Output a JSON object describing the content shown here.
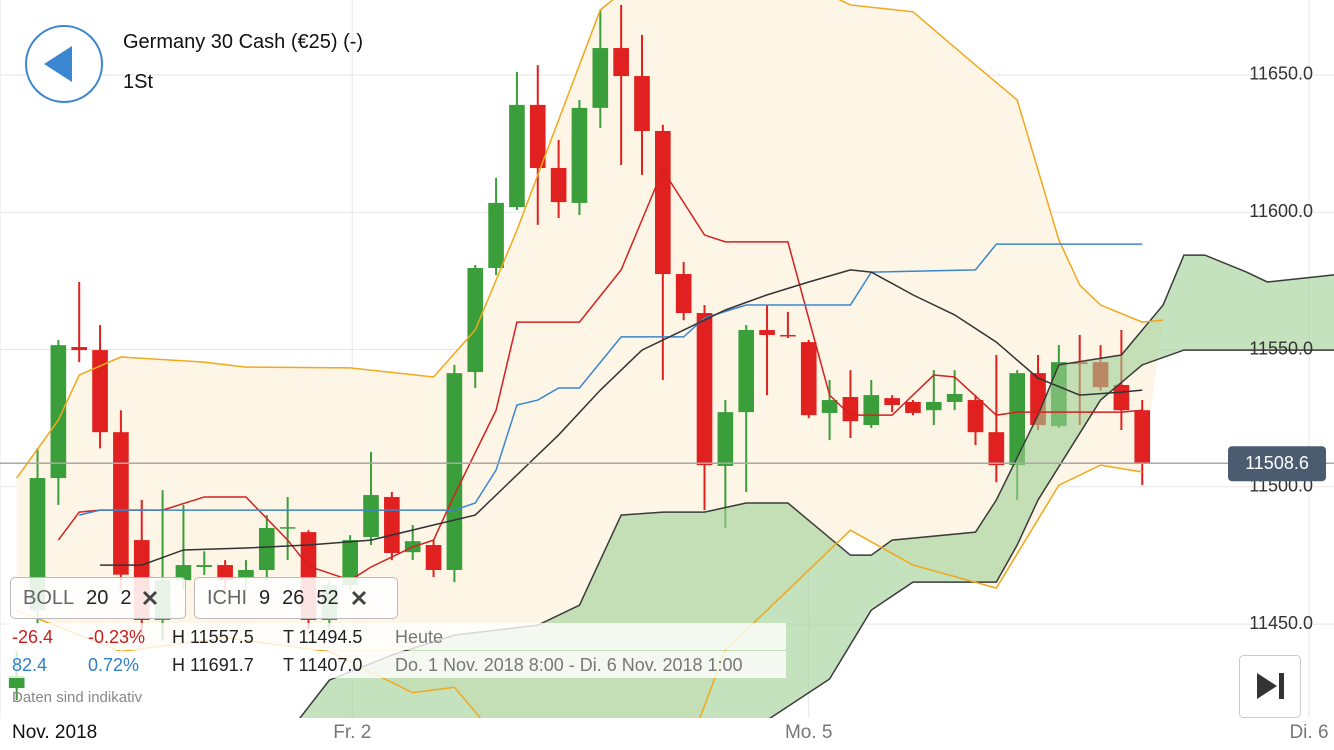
{
  "header": {
    "title": "Germany 30 Cash (€25) (-)",
    "subtitle": "1St"
  },
  "chart_data": {
    "type": "candlestick",
    "up_color": "#3a9e3a",
    "down_color": "#e0211f",
    "xlim": [
      -0.8,
      63.2
    ],
    "xticks": [
      {
        "value": -0.8,
        "label": "Nov. 2018"
      },
      {
        "value": 16.1,
        "label": "Fr. 2"
      },
      {
        "value": 38,
        "label": "Mo. 5"
      },
      {
        "value": 62,
        "label": "Di. 6"
      }
    ],
    "ylim": [
      11415.8,
      11677.3
    ],
    "yticks": [
      {
        "value": 11450,
        "label": "11450.0"
      },
      {
        "value": 11500,
        "label": "11500.0"
      },
      {
        "value": 11550,
        "label": "11550.0"
      },
      {
        "value": 11600,
        "label": "11600.0"
      },
      {
        "value": 11650,
        "label": "11650.0"
      }
    ],
    "grid": true,
    "last_value": 11508.6,
    "open": [
      11426.7,
      11455,
      11503.2,
      11550.9,
      11549.8,
      11519.9,
      11480.6,
      11451.5,
      11466.0,
      11470.8,
      11471.5,
      11466.8,
      11469.7,
      11485.0,
      11483.5,
      11451.5,
      11464.2,
      11481.7,
      11496.3,
      11476.2,
      11478.8,
      11469.7,
      11541.8,
      11579.7,
      11601.9,
      11639.1,
      11616.1,
      11603.4,
      11638.0,
      11659.8,
      11649.6,
      11629.6,
      11577.5,
      11563.3,
      11507.6,
      11527.2,
      11557.1,
      11555.3,
      11552.7,
      11526.9,
      11532.7,
      11522.5,
      11532.3,
      11530.9,
      11527.9,
      11530.9,
      11531.6,
      11519.9,
      11507.9,
      11541.4,
      11522.1,
      11545.4,
      11545.4,
      11537.1,
      11527.9
    ],
    "high": [
      11440,
      11514.1,
      11553.5,
      11574.6,
      11558.9,
      11527.9,
      11495.2,
      11498.8,
      11493.4,
      11476.5,
      11473.3,
      11473.3,
      11489.7,
      11496.3,
      11484.2,
      11466.0,
      11482.4,
      11512.7,
      11498.1,
      11486.1,
      11480.6,
      11544.4,
      11580.8,
      11612.5,
      11651.1,
      11653.6,
      11626.3,
      11640.9,
      11673.7,
      11675.5,
      11664.6,
      11631.8,
      11581.9,
      11566.2,
      11531.6,
      11558.9,
      11566.2,
      11563.7,
      11553.5,
      11538.9,
      11542.5,
      11538.9,
      11533.4,
      11531.6,
      11542.5,
      11542.5,
      11533.4,
      11548.0,
      11542.5,
      11548.0,
      11551.6,
      11555.3,
      11551.6,
      11557.1,
      11531.6
    ],
    "low": [
      11422.3,
      11450,
      11493.4,
      11545.4,
      11514,
      11462.4,
      11446,
      11444,
      11462.4,
      11467.9,
      11462.4,
      11462.4,
      11466.0,
      11473.3,
      11448,
      11448,
      11462.4,
      11478.8,
      11473.3,
      11473.3,
      11467.1,
      11465.3,
      11536.0,
      11577.1,
      11600.8,
      11595.4,
      11597.9,
      11599.0,
      11630.7,
      11617.2,
      11613.6,
      11538.9,
      11560.7,
      11491.5,
      11485.0,
      11498.1,
      11533.4,
      11554.2,
      11525.0,
      11517.0,
      11517.8,
      11521.4,
      11527.2,
      11526.1,
      11522.5,
      11527.9,
      11515.2,
      11501.7,
      11495.2,
      11520.7,
      11521.4,
      11522.5,
      11535.0,
      11520.7,
      11500.6
    ],
    "close": [
      11431.1,
      11503.2,
      11551.6,
      11549.8,
      11519.9,
      11468,
      11451.5,
      11466.0,
      11471.5,
      11471.5,
      11466.0,
      11469.7,
      11485.0,
      11485.3,
      11451.5,
      11464.2,
      11480.6,
      11497.0,
      11475.9,
      11480.2,
      11469.7,
      11541.4,
      11579.7,
      11603.4,
      11639.1,
      11616.1,
      11603.7,
      11638.0,
      11659.8,
      11649.6,
      11629.6,
      11577.5,
      11563.3,
      11507.9,
      11527.2,
      11557.1,
      11555.3,
      11554.9,
      11526.1,
      11531.6,
      11523.9,
      11533.4,
      11529.8,
      11526.9,
      11530.9,
      11533.8,
      11519.9,
      11507.9,
      11541.4,
      11522.5,
      11545.4,
      11544.7,
      11536.3,
      11527.9,
      11508.6
    ],
    "bollinger": {
      "color": "#f0a81c",
      "fill": "#fdf5e6",
      "upper": {
        "x": [
          0,
          2,
          3,
          5,
          9,
          11,
          16,
          20,
          22,
          24,
          26,
          28,
          31,
          36,
          40,
          43,
          46,
          48,
          50,
          51,
          52,
          54,
          55
        ],
        "values": [
          11503.2,
          11524.3,
          11540.7,
          11547.3,
          11545.4,
          11543.6,
          11543.3,
          11540.0,
          11557.1,
          11593.5,
          11633.6,
          11673.7,
          11692,
          11690,
          11675.5,
          11673,
          11653.6,
          11640.9,
          11589.9,
          11573.5,
          11566.2,
          11560.0,
          11560.7
        ]
      },
      "lower": {
        "x": [
          0,
          5,
          10,
          15,
          19,
          21,
          24,
          32,
          34,
          40,
          43,
          47,
          50,
          52,
          54
        ],
        "values": [
          11455,
          11440,
          11445,
          11440,
          11425,
          11427,
          11400,
          11400,
          11440.5,
          11484.2,
          11471.5,
          11463.1,
          11500.6,
          11507.9,
          11505.4
        ]
      }
    },
    "lines": [
      {
        "color": "#d42020",
        "x": [
          2,
          3,
          4,
          7,
          9,
          11,
          13,
          14,
          16,
          17,
          19,
          20,
          21,
          23,
          24,
          27,
          29,
          31,
          33,
          34,
          37,
          39,
          40,
          42,
          44,
          45,
          47,
          48,
          53,
          54
        ],
        "values": [
          11480.6,
          11490.8,
          11491.5,
          11491.5,
          11496.3,
          11496.3,
          11480.6,
          11471.1,
          11466.0,
          11470.8,
          11478.1,
          11480.6,
          11497.0,
          11527.9,
          11560.0,
          11560.0,
          11579.0,
          11615.4,
          11591.7,
          11589.2,
          11589.2,
          11533.4,
          11526.1,
          11526.1,
          11540.7,
          11540.0,
          11526.1,
          11527.2,
          11527.2,
          11527.9
        ]
      },
      {
        "color": "#3a86d0",
        "x": [
          3,
          4,
          21,
          22,
          23,
          24,
          25,
          26,
          27,
          29,
          32,
          33,
          35,
          36,
          40,
          41,
          46,
          47,
          54
        ],
        "values": [
          11489.7,
          11491.5,
          11491.5,
          11494.1,
          11506.1,
          11529.8,
          11531.6,
          11536.0,
          11536.0,
          11554.6,
          11554.6,
          11561.5,
          11566.2,
          11566.2,
          11566.2,
          11578.2,
          11579.0,
          11588.4,
          11588.4
        ]
      },
      {
        "color": "#333333",
        "x": [
          4,
          6,
          8,
          11,
          14,
          17,
          20,
          22,
          24,
          26,
          28,
          30,
          32,
          34,
          36,
          38,
          40,
          41,
          43,
          45,
          47,
          49,
          51,
          53,
          54
        ],
        "values": [
          11471.5,
          11471.5,
          11477.0,
          11477.7,
          11478.8,
          11480.6,
          11486.1,
          11489.7,
          11504.3,
          11518.9,
          11535.2,
          11549.8,
          11557.1,
          11564.4,
          11569.9,
          11574.6,
          11579.0,
          11578.2,
          11569.9,
          11562.6,
          11552.7,
          11539.6,
          11533.4,
          11534.5,
          11535.2
        ]
      }
    ],
    "cloud": {
      "fill": "#9fcf95",
      "color": "#3a3a3a",
      "span_a": {
        "x": [
          13,
          15,
          18,
          21,
          25,
          27,
          29,
          31,
          33,
          35,
          37,
          40,
          41,
          42,
          46,
          47,
          49,
          50,
          53,
          55,
          56,
          57,
          59,
          60,
          63.2
        ],
        "values": [
          11410,
          11429.6,
          11438.7,
          11446.0,
          11449.6,
          11456.9,
          11489.7,
          11490.8,
          11490.8,
          11494.1,
          11494.1,
          11475.1,
          11475.1,
          11480.6,
          11483.5,
          11495.2,
          11526.1,
          11544.4,
          11548.0,
          11566.2,
          11584.4,
          11584.4,
          11578.2,
          11574.6,
          11577.2
        ]
      },
      "span_b": {
        "x": [
          13,
          30,
          36,
          39,
          41,
          43,
          47,
          48,
          49,
          52,
          54,
          56,
          63.2
        ],
        "values": [
          11410,
          11410,
          11415,
          11430,
          11455.1,
          11465.3,
          11465.3,
          11478.8,
          11495.2,
          11531.6,
          11544.4,
          11549.8,
          11549.8
        ]
      }
    }
  },
  "indicators": [
    {
      "name": "BOLL",
      "params": [
        20,
        2
      ]
    },
    {
      "name": "ICHI",
      "params": [
        9,
        26,
        52
      ]
    }
  ],
  "info": [
    {
      "change": "-26.4",
      "change_pct": "-0.23%",
      "high": "H 11557.5",
      "low": "T 11494.5",
      "period": "Heute"
    },
    {
      "change": "82.4",
      "change_pct": "0.72%",
      "high": "H 11691.7",
      "low": "T 11407.0",
      "period": "Do. 1 Nov. 2018 8:00 - Di. 6 Nov. 2018 1:00"
    }
  ],
  "disclaimer": "Daten sind indikativ"
}
